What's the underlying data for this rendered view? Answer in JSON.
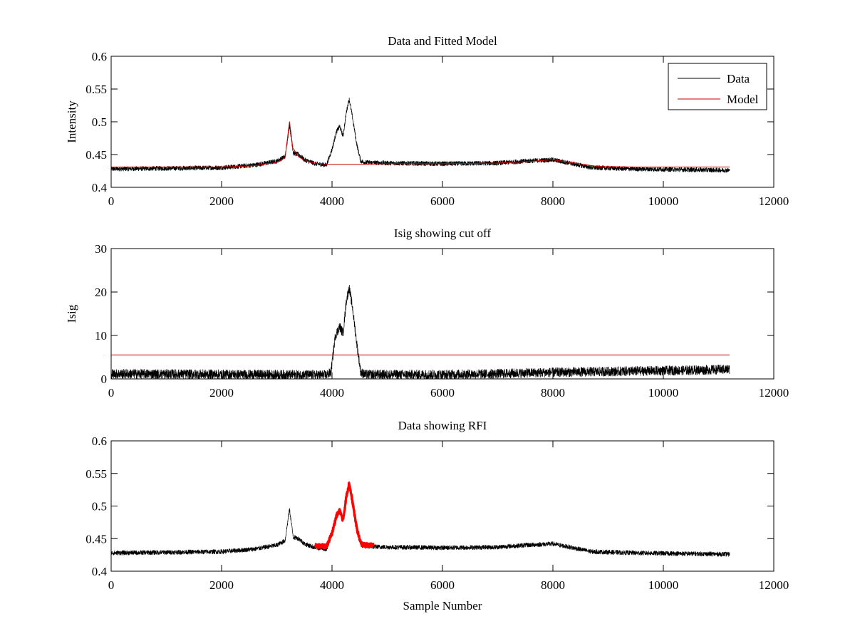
{
  "chart_data": [
    {
      "type": "line",
      "title": "Data and Fitted Model",
      "xlabel": "",
      "ylabel": "Intensity",
      "xlim": [
        0,
        12000
      ],
      "ylim": [
        0.4,
        0.6
      ],
      "xticks": [
        "0",
        "2000",
        "4000",
        "6000",
        "8000",
        "10000",
        "12000"
      ],
      "yticks": [
        "0.4",
        "0.45",
        "0.5",
        "0.55",
        "0.6"
      ],
      "legend": {
        "position": "top-right",
        "entries": [
          "Data",
          "Model"
        ]
      },
      "series": [
        {
          "name": "Data",
          "color": "#000000",
          "style": "noisy",
          "noise": 0.0035,
          "points": [
            [
              0,
              0.428
            ],
            [
              2000,
              0.43
            ],
            [
              2600,
              0.434
            ],
            [
              3000,
              0.44
            ],
            [
              3150,
              0.447
            ],
            [
              3230,
              0.495
            ],
            [
              3300,
              0.452
            ],
            [
              3400,
              0.45
            ],
            [
              3500,
              0.442
            ],
            [
              3700,
              0.436
            ],
            [
              3900,
              0.434
            ],
            [
              4000,
              0.458
            ],
            [
              4080,
              0.485
            ],
            [
              4140,
              0.493
            ],
            [
              4200,
              0.478
            ],
            [
              4260,
              0.515
            ],
            [
              4310,
              0.535
            ],
            [
              4360,
              0.512
            ],
            [
              4450,
              0.465
            ],
            [
              4520,
              0.44
            ],
            [
              4600,
              0.438
            ],
            [
              5000,
              0.437
            ],
            [
              6000,
              0.436
            ],
            [
              7000,
              0.437
            ],
            [
              7500,
              0.44
            ],
            [
              8000,
              0.442
            ],
            [
              8300,
              0.437
            ],
            [
              8700,
              0.43
            ],
            [
              9500,
              0.428
            ],
            [
              11200,
              0.426
            ]
          ]
        },
        {
          "name": "Model",
          "color": "#cc0000",
          "style": "line",
          "points": [
            [
              0,
              0.431
            ],
            [
              2000,
              0.431
            ],
            [
              2600,
              0.433
            ],
            [
              3000,
              0.438
            ],
            [
              3150,
              0.445
            ],
            [
              3230,
              0.5
            ],
            [
              3290,
              0.46
            ],
            [
              3400,
              0.446
            ],
            [
              3600,
              0.438
            ],
            [
              3900,
              0.435
            ],
            [
              4500,
              0.435
            ],
            [
              5000,
              0.436
            ],
            [
              6000,
              0.436
            ],
            [
              7000,
              0.437
            ],
            [
              7500,
              0.439
            ],
            [
              8000,
              0.442
            ],
            [
              8400,
              0.437
            ],
            [
              8800,
              0.432
            ],
            [
              9500,
              0.431
            ],
            [
              11200,
              0.431
            ]
          ]
        }
      ]
    },
    {
      "type": "line",
      "title": "Isig showing cut off",
      "xlabel": "",
      "ylabel": "Isig",
      "xlim": [
        0,
        12000
      ],
      "ylim": [
        0,
        30
      ],
      "xticks": [
        "0",
        "2000",
        "4000",
        "6000",
        "8000",
        "10000",
        "12000"
      ],
      "yticks": [
        "0",
        "10",
        "20",
        "30"
      ],
      "series": [
        {
          "color": "#000000",
          "style": "noisy",
          "noise": 1.1,
          "points": [
            [
              0,
              1.2
            ],
            [
              3900,
              0.9
            ],
            [
              3980,
              1.5
            ],
            [
              4060,
              10.0
            ],
            [
              4140,
              12.0
            ],
            [
              4200,
              10.5
            ],
            [
              4260,
              18.0
            ],
            [
              4310,
              21.0
            ],
            [
              4370,
              16.5
            ],
            [
              4450,
              8.0
            ],
            [
              4520,
              1.5
            ],
            [
              4600,
              1.0
            ],
            [
              6000,
              1.0
            ],
            [
              7000,
              1.2
            ],
            [
              8000,
              1.5
            ],
            [
              9500,
              1.8
            ],
            [
              10500,
              2.0
            ],
            [
              11200,
              2.2
            ]
          ]
        },
        {
          "color": "#cc0000",
          "style": "line",
          "points": [
            [
              0,
              5.5
            ],
            [
              11200,
              5.5
            ]
          ]
        }
      ]
    },
    {
      "type": "line",
      "title": "Data showing RFI",
      "xlabel": "Sample Number",
      "ylabel": "",
      "xlim": [
        0,
        12000
      ],
      "ylim": [
        0.4,
        0.6
      ],
      "xticks": [
        "0",
        "2000",
        "4000",
        "6000",
        "8000",
        "10000",
        "12000"
      ],
      "yticks": [
        "0.4",
        "0.45",
        "0.5",
        "0.55",
        "0.6"
      ],
      "series": [
        {
          "color": "#000000",
          "style": "noisy",
          "noise": 0.0035,
          "points": [
            [
              0,
              0.428
            ],
            [
              2000,
              0.43
            ],
            [
              2600,
              0.434
            ],
            [
              3000,
              0.44
            ],
            [
              3150,
              0.447
            ],
            [
              3230,
              0.495
            ],
            [
              3300,
              0.452
            ],
            [
              3400,
              0.45
            ],
            [
              3500,
              0.442
            ],
            [
              3700,
              0.436
            ],
            [
              3900,
              0.434
            ],
            [
              4000,
              0.458
            ],
            [
              4080,
              0.485
            ],
            [
              4140,
              0.493
            ],
            [
              4200,
              0.478
            ],
            [
              4260,
              0.515
            ],
            [
              4310,
              0.535
            ],
            [
              4360,
              0.512
            ],
            [
              4450,
              0.465
            ],
            [
              4520,
              0.44
            ],
            [
              4600,
              0.438
            ],
            [
              5000,
              0.437
            ],
            [
              6000,
              0.436
            ],
            [
              7000,
              0.437
            ],
            [
              7500,
              0.44
            ],
            [
              8000,
              0.442
            ],
            [
              8300,
              0.437
            ],
            [
              8700,
              0.43
            ],
            [
              9500,
              0.428
            ],
            [
              11200,
              0.426
            ]
          ]
        },
        {
          "color": "#ff0000",
          "style": "thick-noisy",
          "noise": 0.003,
          "points": [
            [
              3700,
              0.439
            ],
            [
              3900,
              0.438
            ],
            [
              4000,
              0.458
            ],
            [
              4080,
              0.485
            ],
            [
              4140,
              0.493
            ],
            [
              4200,
              0.478
            ],
            [
              4260,
              0.515
            ],
            [
              4310,
              0.535
            ],
            [
              4360,
              0.512
            ],
            [
              4450,
              0.465
            ],
            [
              4520,
              0.443
            ],
            [
              4600,
              0.44
            ],
            [
              4750,
              0.44
            ]
          ]
        }
      ]
    }
  ]
}
